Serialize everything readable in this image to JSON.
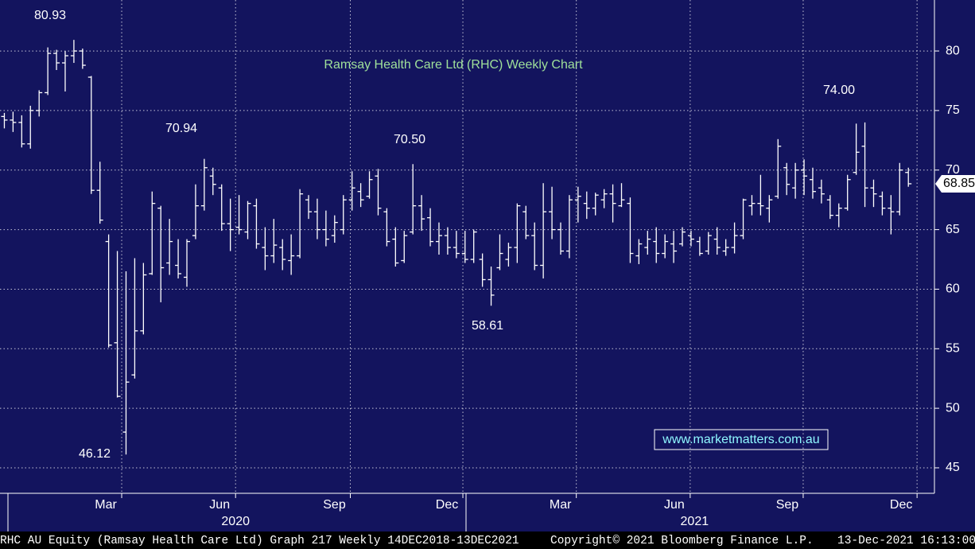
{
  "chart_data": {
    "type": "ohlc",
    "title": "Ramsay Health Care Ltd (RHC) Weekly Chart",
    "watermark": "www.marketmatters.com.au",
    "footer": [
      "RHC AU Equity (Ramsay Health Care Ltd) Graph 217  Weekly 14DEC2018-13DEC2021",
      "Copyright© 2021 Bloomberg Finance L.P.",
      "13-Dec-2021 16:13:00"
    ],
    "annotations": [
      "80.93",
      "70.94",
      "70.50",
      "58.61",
      "46.12",
      "74.00"
    ],
    "last_price": 68.85,
    "color": "#ffffff",
    "grid": true,
    "ylim": [
      42.86,
      84.28
    ],
    "yticks": [
      45,
      50,
      55,
      60,
      65,
      70,
      75,
      80
    ],
    "xlim": [
      -0.5,
      107
    ],
    "xticks": [
      {
        "value": 13.5,
        "label": "Mar"
      },
      {
        "value": 26.6,
        "label": "Jun"
      },
      {
        "value": 39.8,
        "label": "Sep"
      },
      {
        "value": 52.75,
        "label": "Dec"
      },
      {
        "value": 65.8,
        "label": "Mar"
      },
      {
        "value": 78.9,
        "label": "Jun"
      },
      {
        "value": 91.9,
        "label": "Sep"
      },
      {
        "value": 105.0,
        "label": "Dec"
      }
    ],
    "year_ticks": [
      {
        "value": 26.6,
        "label": "2020"
      },
      {
        "value": 79.4,
        "label": "2021"
      }
    ],
    "open": [
      74.5,
      74.2,
      74.0,
      72.2,
      75.0,
      76.5,
      79.8,
      79.0,
      79.6,
      80.0,
      77.8,
      68.3,
      64.0,
      55.5,
      48.0,
      52.8,
      56.5,
      61.3,
      66.8,
      62.2,
      62.0,
      61.0,
      64.5,
      67.0,
      69.5,
      68.5,
      65.5,
      65.2,
      64.8,
      67.0,
      63.5,
      62.8,
      63.5,
      62.4,
      62.8,
      67.5,
      66.5,
      65.0,
      64.5,
      65.0,
      67.5,
      68.2,
      67.8,
      69.5,
      66.5,
      64.2,
      62.4,
      64.8,
      67.0,
      66.0,
      64.0,
      64.5,
      63.5,
      63.0,
      62.5,
      62.5,
      60.8,
      61.8,
      62.5,
      63.5,
      66.5,
      64.5,
      62.0,
      66.5,
      65.0,
      63.2,
      67.5,
      67.2,
      66.8,
      67.5,
      68.0,
      67.0,
      67.2,
      62.8,
      63.5,
      64.0,
      63.0,
      63.8,
      63.8,
      64.5,
      64.0,
      63.2,
      64.2,
      63.2,
      63.5,
      64.5,
      67.0,
      67.2,
      66.8,
      67.8,
      70.2,
      68.5,
      70.0,
      69.2,
      68.5,
      67.5,
      66.2,
      66.8,
      69.8,
      72.0,
      68.5,
      67.8,
      66.8,
      66.5,
      69.8
    ],
    "high": [
      74.8,
      74.9,
      74.6,
      75.4,
      76.7,
      80.3,
      80.1,
      80.0,
      80.93,
      80.2,
      77.9,
      70.7,
      64.6,
      63.2,
      61.5,
      62.6,
      62.2,
      68.2,
      67.0,
      65.9,
      64.2,
      64.2,
      68.8,
      70.94,
      70.2,
      68.8,
      67.6,
      67.9,
      67.4,
      67.6,
      65.2,
      65.9,
      64.2,
      64.6,
      68.4,
      67.9,
      67.6,
      66.6,
      66.2,
      67.9,
      69.9,
      68.9,
      69.9,
      70.1,
      66.8,
      65.2,
      64.9,
      70.5,
      67.9,
      66.8,
      65.6,
      65.2,
      64.9,
      64.9,
      65.0,
      63.0,
      61.9,
      64.6,
      63.9,
      67.2,
      67.0,
      65.6,
      68.9,
      68.6,
      65.6,
      67.9,
      68.6,
      68.2,
      68.1,
      68.4,
      68.8,
      68.9,
      67.7,
      64.2,
      64.9,
      65.2,
      64.6,
      64.9,
      65.2,
      64.9,
      64.4,
      64.8,
      65.2,
      64.2,
      65.6,
      67.6,
      67.9,
      69.6,
      67.9,
      72.6,
      70.6,
      70.6,
      70.9,
      70.2,
      69.2,
      67.9,
      67.2,
      69.6,
      73.9,
      74.0,
      69.2,
      68.2,
      67.9,
      70.6,
      70.2
    ],
    "low": [
      73.5,
      73.2,
      71.9,
      71.8,
      74.5,
      76.3,
      78.4,
      76.6,
      79.0,
      78.5,
      68.0,
      65.5,
      55.1,
      50.9,
      46.12,
      52.5,
      56.2,
      61.2,
      58.9,
      61.2,
      60.9,
      60.2,
      64.2,
      66.6,
      67.9,
      64.9,
      63.2,
      64.6,
      64.2,
      63.4,
      61.6,
      62.2,
      61.6,
      61.2,
      62.6,
      65.9,
      64.2,
      63.6,
      63.9,
      64.6,
      66.6,
      66.9,
      67.6,
      66.2,
      63.6,
      61.9,
      62.2,
      64.6,
      64.9,
      63.6,
      62.9,
      62.9,
      62.6,
      62.2,
      62.2,
      60.2,
      58.61,
      61.6,
      61.9,
      62.2,
      64.2,
      61.6,
      60.9,
      64.2,
      62.9,
      62.6,
      65.6,
      65.9,
      66.2,
      66.8,
      65.6,
      66.9,
      62.2,
      62.1,
      62.9,
      62.2,
      62.6,
      62.2,
      63.6,
      63.6,
      62.8,
      62.9,
      62.9,
      62.8,
      63.0,
      64.2,
      66.2,
      66.2,
      65.6,
      67.6,
      67.9,
      67.6,
      67.9,
      67.6,
      67.2,
      65.9,
      65.2,
      66.6,
      69.6,
      66.9,
      66.9,
      66.2,
      64.6,
      66.2,
      68.6
    ],
    "close": [
      74.2,
      74.0,
      72.2,
      75.0,
      76.5,
      79.8,
      79.0,
      79.6,
      80.0,
      78.8,
      68.3,
      65.8,
      55.3,
      51.0,
      52.2,
      56.5,
      61.2,
      67.2,
      61.8,
      64.0,
      61.3,
      64.0,
      67.0,
      70.2,
      68.8,
      65.5,
      65.0,
      65.0,
      67.2,
      63.8,
      62.8,
      63.7,
      62.5,
      62.8,
      68.0,
      66.5,
      65.0,
      64.2,
      65.6,
      67.5,
      68.5,
      67.5,
      69.2,
      66.8,
      64.0,
      62.2,
      64.5,
      67.0,
      65.9,
      64.0,
      64.5,
      63.5,
      63.0,
      62.5,
      64.8,
      60.8,
      59.5,
      63.0,
      63.5,
      67.0,
      64.5,
      62.0,
      66.5,
      65.0,
      63.2,
      67.5,
      67.8,
      66.8,
      67.9,
      68.0,
      67.2,
      67.5,
      63.0,
      63.8,
      64.2,
      63.0,
      64.0,
      63.2,
      64.8,
      64.2,
      63.0,
      64.5,
      63.5,
      63.5,
      64.5,
      67.5,
      67.2,
      67.0,
      67.5,
      72.0,
      68.8,
      70.0,
      69.5,
      68.2,
      68.0,
      66.2,
      66.8,
      69.2,
      71.5,
      68.5,
      68.0,
      66.8,
      66.5,
      70.0,
      68.85
    ]
  }
}
